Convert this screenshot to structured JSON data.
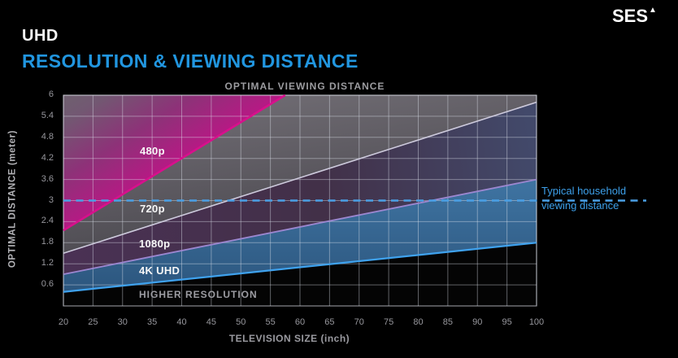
{
  "header": {
    "product": "UHD",
    "title": "RESOLUTION & VIEWING DISTANCE",
    "logo": "SES",
    "logo_mark": "▲"
  },
  "chart_data": {
    "type": "area",
    "title": "OPTIMAL VIEWING DISTANCE",
    "xlabel": "TELEVISION SIZE (inch)",
    "ylabel": "OPTIMAL DISTANCE (meter)",
    "xlim": [
      20,
      100
    ],
    "ylim": [
      0,
      6
    ],
    "grid": true,
    "x_ticks": [
      "20",
      "25",
      "30",
      "35",
      "40",
      "45",
      "50",
      "55",
      "60",
      "65",
      "70",
      "75",
      "80",
      "85",
      "90",
      "95",
      "100"
    ],
    "y_ticks": [
      "6",
      "5.4",
      "4.8",
      "4.2",
      "3.6",
      "3",
      "2.4",
      "1.8",
      "1.2",
      "0.6"
    ],
    "lines": [
      {
        "name": "480p optimal distance line",
        "color": "#d8108c",
        "width": 2.6,
        "points": [
          [
            20,
            2.15
          ],
          [
            57.5,
            6.0
          ]
        ]
      },
      {
        "name": "720p optimal distance line",
        "color": "#cdcadc",
        "width": 1.6,
        "points": [
          [
            20,
            1.5
          ],
          [
            100,
            5.8
          ]
        ]
      },
      {
        "name": "1080p optimal distance line",
        "color": "#9c87d0",
        "width": 1.8,
        "points": [
          [
            20,
            0.9
          ],
          [
            100,
            3.6
          ]
        ]
      },
      {
        "name": "4K UHD optimal distance line",
        "color": "#3fa2ee",
        "width": 2.2,
        "points": [
          [
            20,
            0.4
          ],
          [
            100,
            1.8
          ]
        ]
      }
    ],
    "bands": [
      {
        "label": "480p",
        "color": "#a81f7e"
      },
      {
        "label": "720p",
        "color": "#57545c"
      },
      {
        "label": "1080p",
        "color": "#46304f"
      },
      {
        "label": "4K UHD",
        "color": "#31648e"
      },
      {
        "label": "HIGHER RESOLUTION",
        "color": "#050505"
      }
    ],
    "annotation": {
      "line1": "Typical household",
      "line2": "viewing distance",
      "y_value": 3,
      "color": "#3da0ea",
      "dash_color": "#4aa0e6"
    }
  },
  "labels": {
    "res480": "480p",
    "res720": "720p",
    "res1080": "1080p",
    "res4k": "4K UHD",
    "higher": "HIGHER RESOLUTION"
  }
}
